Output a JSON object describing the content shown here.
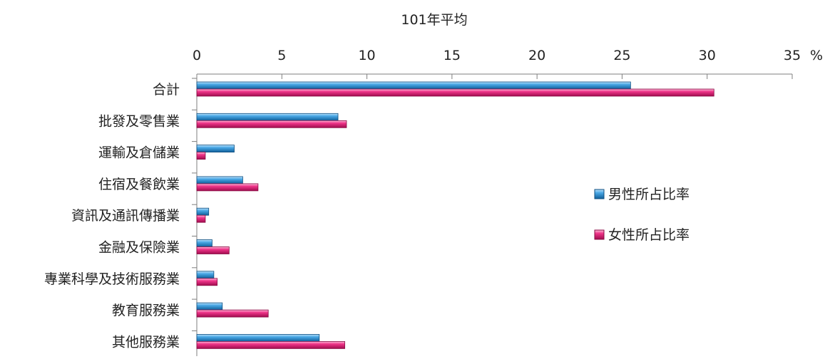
{
  "chart_data": {
    "type": "bar",
    "orientation": "horizontal",
    "title": "101年平均",
    "unit": "%",
    "xlim": [
      0,
      35
    ],
    "xticks": [
      0,
      5,
      10,
      15,
      20,
      25,
      30,
      35
    ],
    "grid": false,
    "legend_position": "right",
    "categories": [
      "合計",
      "批發及零售業",
      "運輸及倉儲業",
      "住宿及餐飲業",
      "資訊及通訊傳播業",
      "金融及保險業",
      "專業科學及技術服務業",
      "教育服務業",
      "其他服務業"
    ],
    "series": [
      {
        "name": "男性所占比率",
        "color": "#1f86c9",
        "values": [
          25.5,
          8.3,
          2.2,
          2.7,
          0.7,
          0.9,
          1.0,
          1.5,
          7.2
        ]
      },
      {
        "name": "女性所占比率",
        "color": "#e0156f",
        "values": [
          30.4,
          8.8,
          0.5,
          3.6,
          0.5,
          1.9,
          1.2,
          4.2,
          8.7
        ]
      }
    ]
  }
}
